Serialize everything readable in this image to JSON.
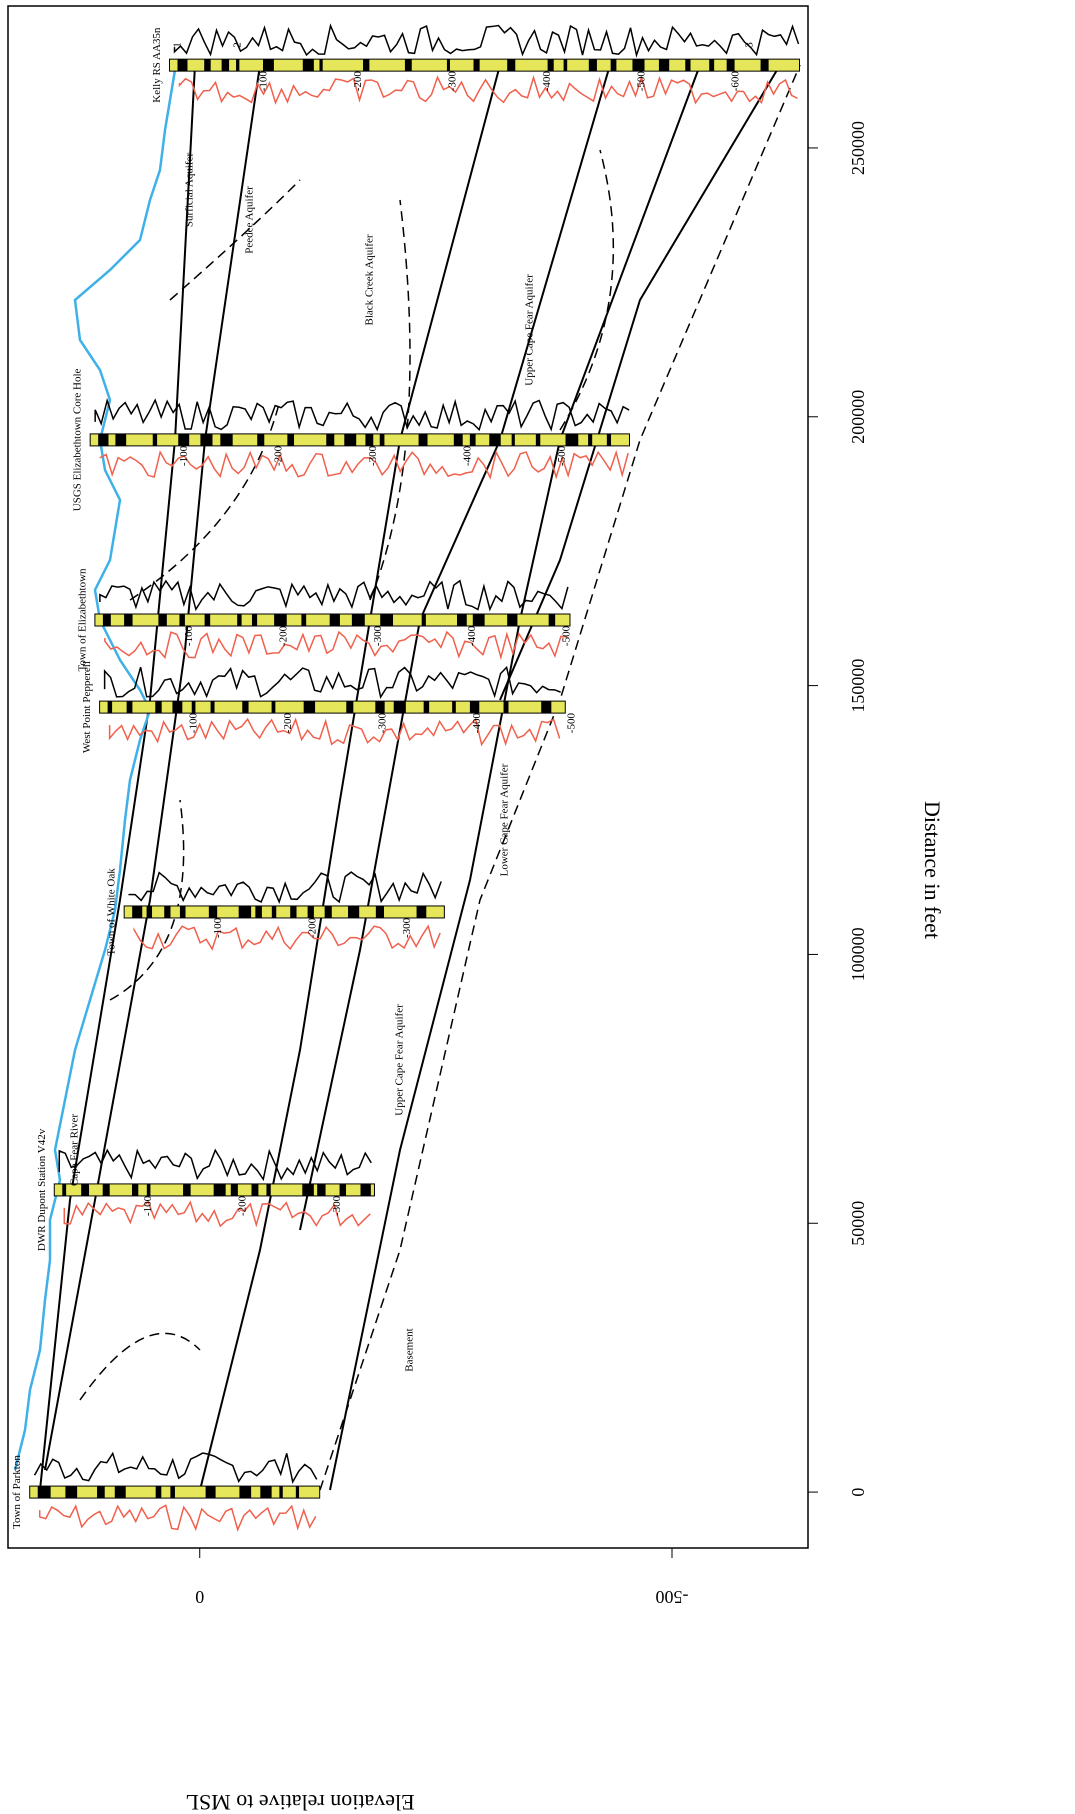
{
  "chart_data": {
    "type": "cross-section",
    "xlabel": "Distance in feet",
    "ylabel": "Elevation relative to MSL",
    "xlim": [
      -10400,
      276400
    ],
    "xticks": [
      0,
      50000,
      100000,
      150000,
      200000,
      250000
    ],
    "ylim": [
      203,
      -644
    ],
    "yticks": [
      0,
      -500
    ],
    "wells": [
      {
        "name": "Town of Parkton",
        "distance": 0,
        "top": 180,
        "bottom": -127,
        "depth_labels": []
      },
      {
        "name": "DWR Dupont Station V42v",
        "distance": 56200,
        "top": 154,
        "bottom": -185,
        "depth_labels": [
          -100,
          -200,
          -300
        ]
      },
      {
        "name": "Town of White Oak",
        "distance": 107900,
        "top": 80,
        "bottom": -259,
        "depth_labels": [
          -100,
          -200,
          -300
        ]
      },
      {
        "name": "West Point Pepperell",
        "distance": 146000,
        "top": 106,
        "bottom": -387,
        "depth_labels": [
          -100,
          -200,
          -300,
          -400,
          -500
        ]
      },
      {
        "name": "Town of Elizabethtown",
        "distance": 162200,
        "top": 111,
        "bottom": -392,
        "depth_labels": [
          -100,
          -200,
          -300,
          -400,
          -500
        ]
      },
      {
        "name": "USGS Elizabethtown Core Hole",
        "distance": 195700,
        "top": 116,
        "bottom": -455,
        "depth_labels": [
          -100,
          -200,
          -300,
          -400,
          -500
        ]
      },
      {
        "name": "Kelly RS AA35n",
        "distance": 265400,
        "top": 32,
        "bottom": -635,
        "depth_labels": [
          -100,
          -200,
          -300,
          -400,
          -500,
          -600
        ]
      }
    ],
    "annotations": [
      "Surficial Aquifer",
      "Peedee Aquifer",
      "Black Creek Aquifer",
      "Upper Cape Fear Aquifer",
      "Upper Cape Fear Aquifer",
      "Lower Cape Fear Aquifer",
      "Basement",
      "Cape Fear River",
      "1",
      "2",
      "3"
    ]
  }
}
